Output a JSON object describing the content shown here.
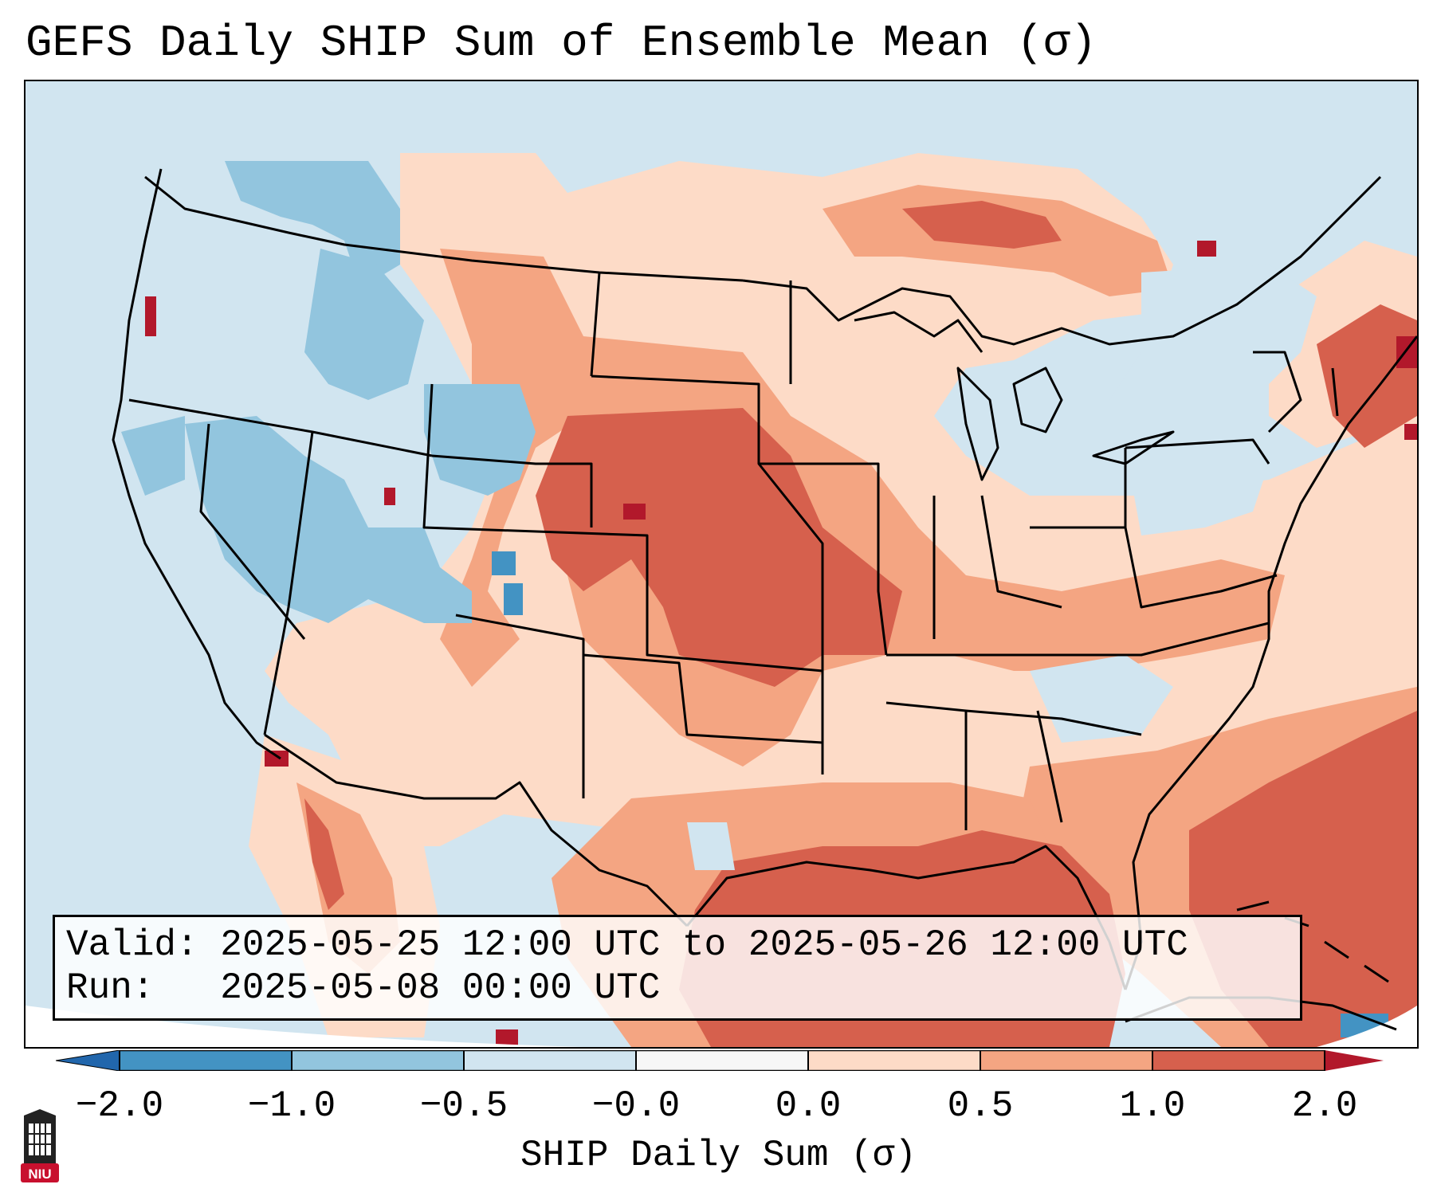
{
  "title": "GEFS Daily SHIP Sum of Ensemble Mean (σ)",
  "info": {
    "valid_line": "Valid: 2025-05-25 12:00 UTC to 2025-05-26 12:00 UTC",
    "run_line": "Run:   2025-05-08 00:00 UTC"
  },
  "colorbar": {
    "label": "SHIP Daily Sum (σ)",
    "tick_labels": [
      "−2.0",
      "−1.0",
      "−0.5",
      "−0.0",
      "0.0",
      "0.5",
      "1.0",
      "2.0"
    ],
    "colors": {
      "extend_low": "#2166ac",
      "bin_neg2_neg1": "#4393c3",
      "bin_neg1_neg05": "#92c5de",
      "bin_neg05_0": "#d1e5f0",
      "bin_0": "#f7f7f7",
      "bin_0_05": "#fddbc7",
      "bin_05_1": "#f4a582",
      "bin_1_2": "#d6604d",
      "extend_high": "#b2182b"
    }
  },
  "logo": {
    "text": "NIU",
    "color": "#c8102e"
  }
}
